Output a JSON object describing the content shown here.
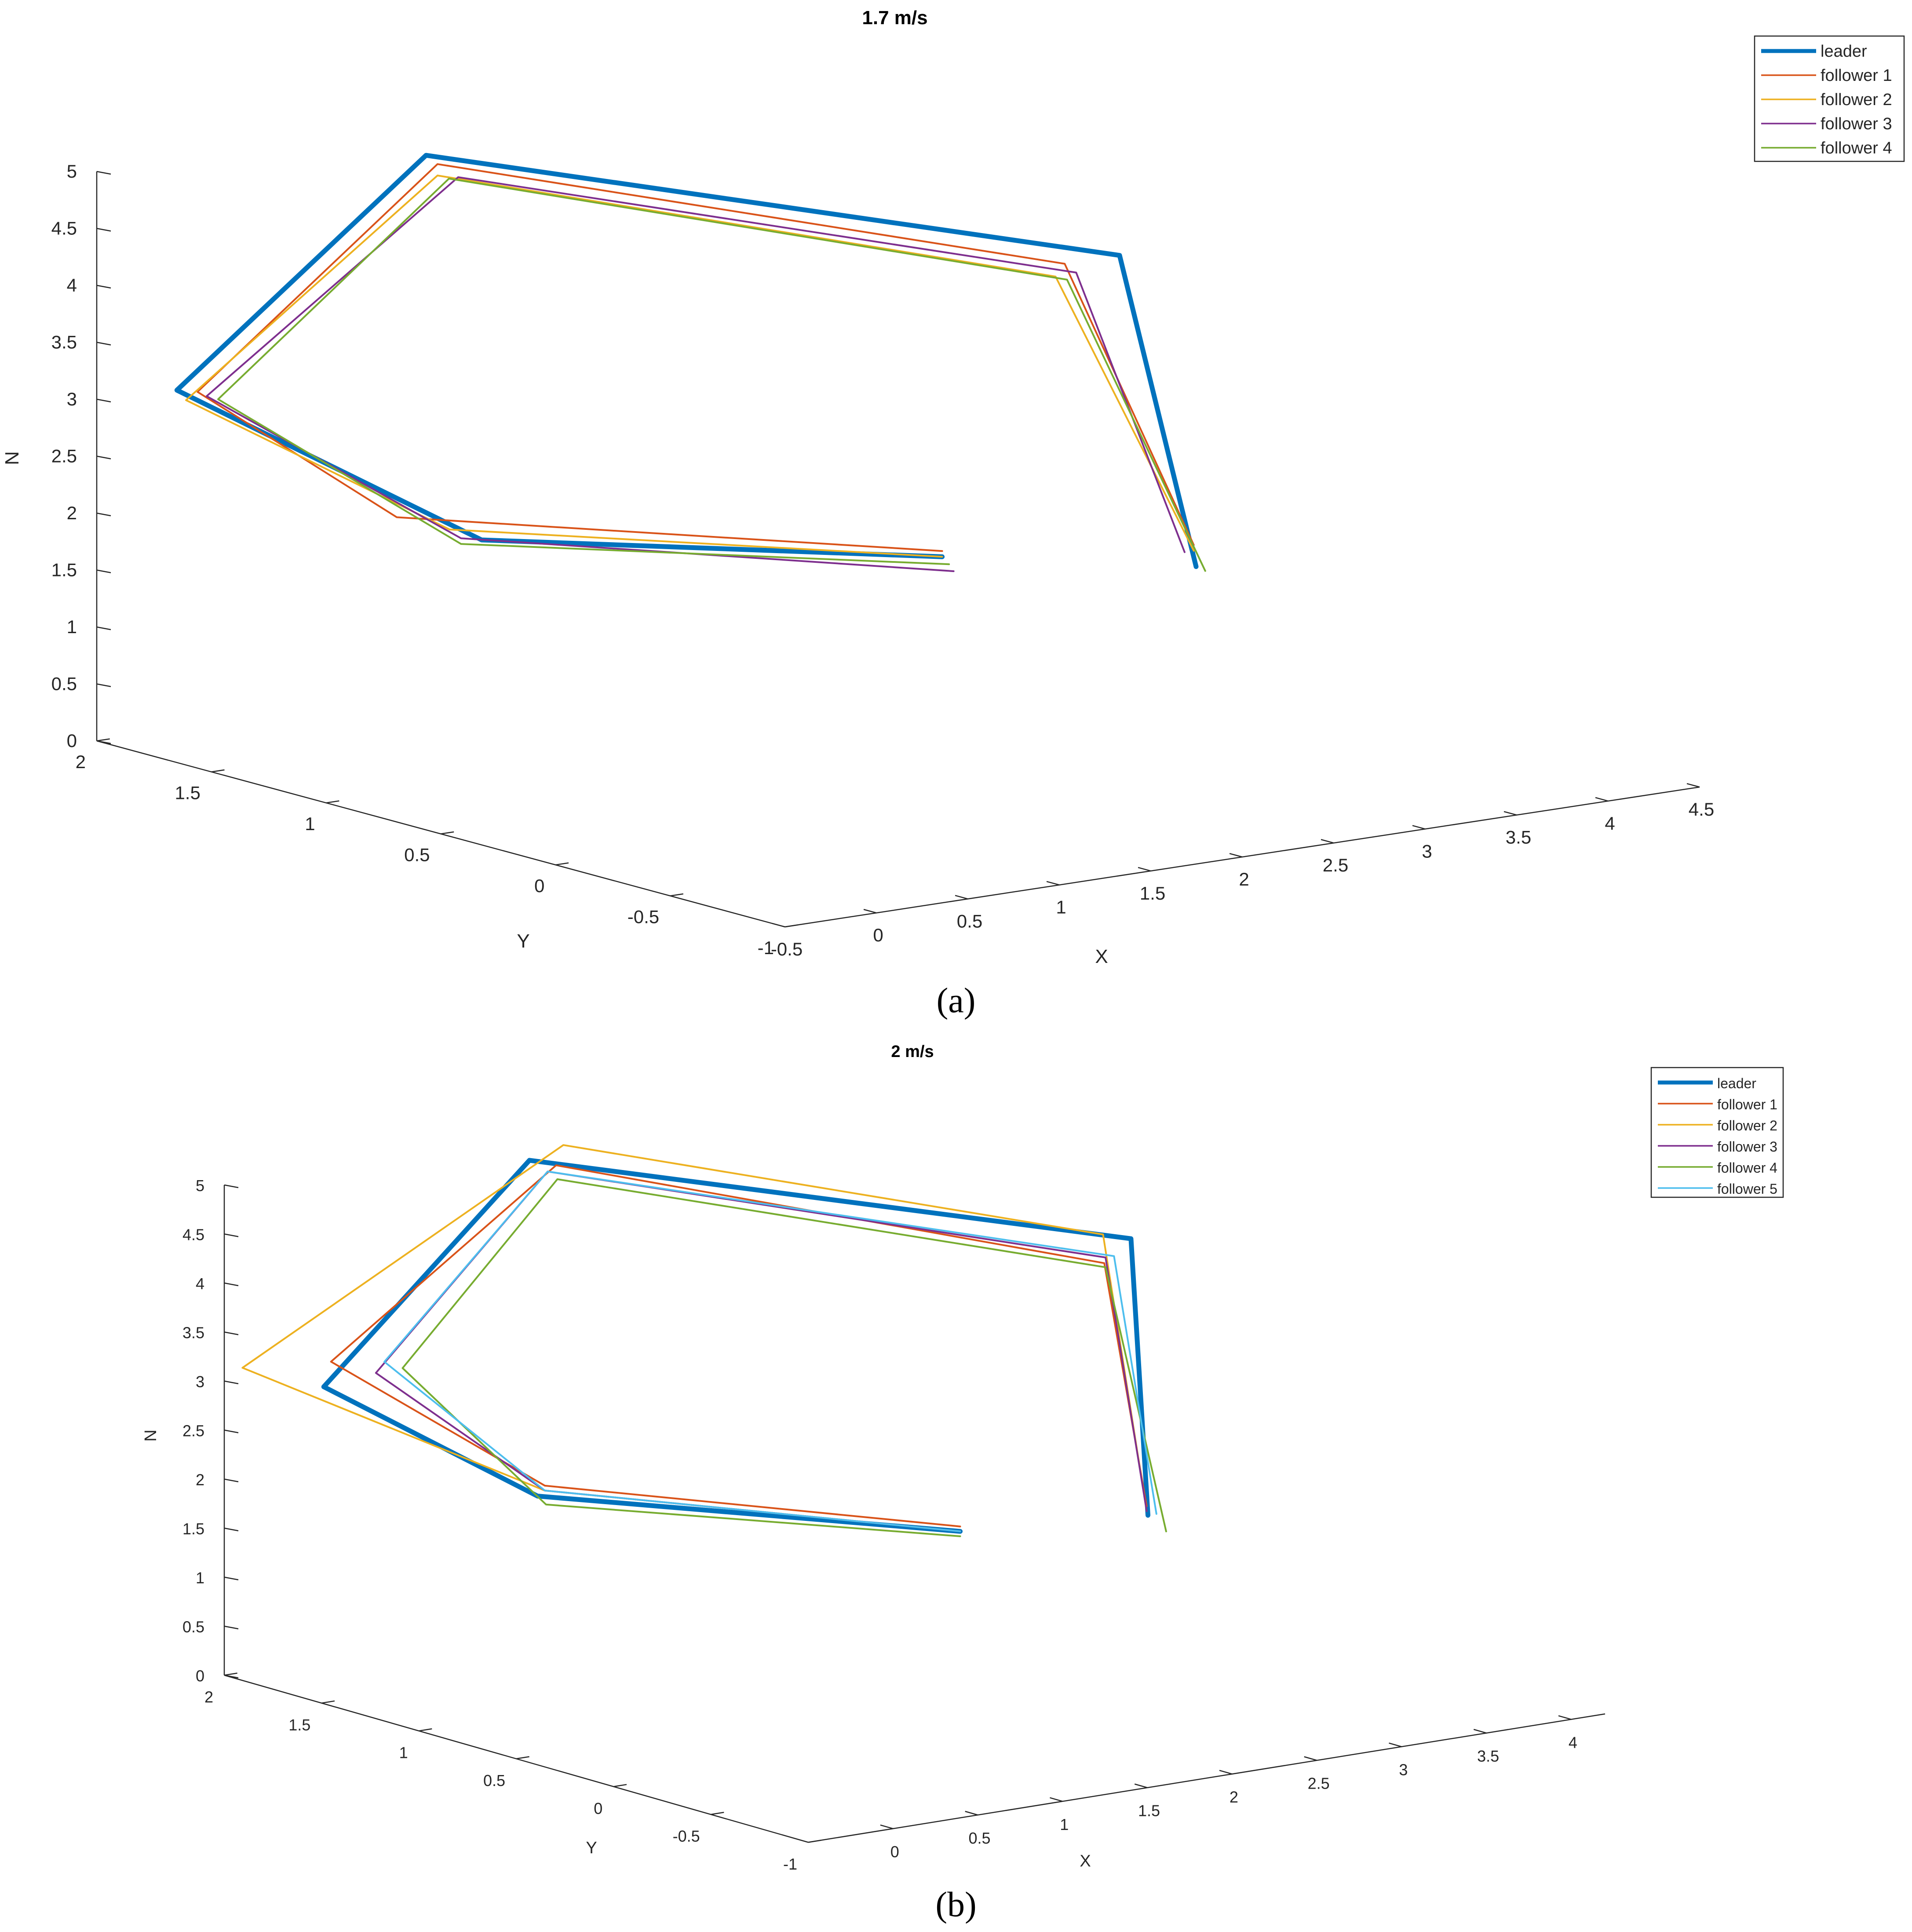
{
  "chart_data": [
    {
      "type": "line",
      "projection": "3d",
      "title": "1.7 m/s",
      "panel_label": "(a)",
      "xlabel": "X",
      "ylabel": "Y",
      "zlabel": "N",
      "xlim": [
        -0.5,
        4.5
      ],
      "ylim": [
        -1,
        2
      ],
      "zlim": [
        0,
        5
      ],
      "xticks": [
        "-0.5",
        "0",
        "0.5",
        "1",
        "1.5",
        "2",
        "2.5",
        "3",
        "3.5",
        "4",
        "4.5"
      ],
      "yticks": [
        "-1",
        "-0.5",
        "0",
        "0.5",
        "1",
        "1.5",
        "2"
      ],
      "zticks": [
        "0",
        "0.5",
        "1",
        "1.5",
        "2",
        "2.5",
        "3",
        "3.5",
        "4",
        "4.5",
        "5"
      ],
      "grid": false,
      "legend_position": "top-right",
      "series": [
        {
          "name": "leader",
          "color": "#0072BD",
          "width": "thick",
          "points": [
            [
              1.3,
              -0.25,
              2.4
            ],
            [
              0.35,
              1.0,
              2.1
            ],
            [
              -0.25,
              1.85,
              3.1
            ],
            [
              1.3,
              2.0,
              4.7
            ],
            [
              3.9,
              1.05,
              3.7
            ],
            [
              2.5,
              -0.4,
              2.1
            ]
          ]
        },
        {
          "name": "follower 1",
          "color": "#D95319",
          "points": [
            [
              1.3,
              -0.25,
              2.45
            ],
            [
              0.2,
              1.25,
              2.2
            ],
            [
              -0.2,
              1.8,
              3.1
            ],
            [
              1.3,
              1.95,
              4.65
            ],
            [
              3.6,
              1.05,
              3.7
            ],
            [
              2.55,
              -0.35,
              2.25
            ]
          ]
        },
        {
          "name": "follower 2",
          "color": "#EDB120",
          "points": [
            [
              1.3,
              -0.25,
              2.4
            ],
            [
              0.3,
              1.1,
              2.15
            ],
            [
              -0.2,
              1.85,
              3.0
            ],
            [
              1.3,
              1.95,
              4.55
            ],
            [
              3.55,
              1.05,
              3.6
            ],
            [
              2.55,
              -0.35,
              2.2
            ]
          ]
        },
        {
          "name": "follower 3",
          "color": "#7E2F8E",
          "points": [
            [
              1.3,
              -0.3,
              2.3
            ],
            [
              0.3,
              1.05,
              2.1
            ],
            [
              -0.15,
              1.8,
              3.05
            ],
            [
              1.35,
              1.9,
              4.55
            ],
            [
              3.6,
              1.0,
              3.65
            ],
            [
              2.5,
              -0.35,
              2.2
            ]
          ]
        },
        {
          "name": "follower 4",
          "color": "#77AC30",
          "points": [
            [
              1.3,
              -0.28,
              2.35
            ],
            [
              0.3,
              1.05,
              2.05
            ],
            [
              -0.15,
              1.75,
              3.05
            ],
            [
              1.3,
              1.9,
              4.55
            ],
            [
              3.55,
              1.0,
              3.6
            ],
            [
              2.55,
              -0.4,
              2.05
            ]
          ]
        }
      ]
    },
    {
      "type": "line",
      "projection": "3d",
      "title": "2 m/s",
      "panel_label": "(b)",
      "xlabel": "X",
      "ylabel": "Y",
      "zlabel": "N",
      "xlim": [
        -0.5,
        4.2
      ],
      "ylim": [
        -1,
        2
      ],
      "zlim": [
        0,
        5
      ],
      "xticks": [
        "0",
        "0.5",
        "1",
        "1.5",
        "2",
        "2.5",
        "3",
        "3.5",
        "4"
      ],
      "yticks": [
        "-1",
        "-0.5",
        "0",
        "0.5",
        "1",
        "1.5",
        "2"
      ],
      "zticks": [
        "0",
        "0.5",
        "1",
        "1.5",
        "2",
        "2.5",
        "3",
        "3.5",
        "4",
        "4.5",
        "5"
      ],
      "grid": false,
      "legend_position": "top-right",
      "series": [
        {
          "name": "leader",
          "color": "#0072BD",
          "width": "thick",
          "points": [
            [
              1.2,
              -0.3,
              2.3
            ],
            [
              0.2,
              1.0,
              2.2
            ],
            [
              -0.2,
              1.75,
              3.0
            ],
            [
              1.3,
              2.0,
              4.75
            ],
            [
              3.7,
              1.0,
              3.85
            ],
            [
              2.25,
              -0.35,
              2.2
            ]
          ]
        },
        {
          "name": "follower 1",
          "color": "#D95319",
          "points": [
            [
              1.2,
              -0.3,
              2.35
            ],
            [
              0.3,
              1.05,
              2.25
            ],
            [
              -0.1,
              1.8,
              3.2
            ],
            [
              1.4,
              1.95,
              4.7
            ],
            [
              3.6,
              1.05,
              3.6
            ],
            [
              2.3,
              -0.3,
              2.25
            ]
          ]
        },
        {
          "name": "follower 2",
          "color": "#EDB120",
          "points": [
            [
              1.2,
              -0.3,
              2.3
            ],
            [
              0.3,
              1.05,
              2.2
            ],
            [
              -0.45,
              1.95,
              3.15
            ],
            [
              1.5,
              2.0,
              4.85
            ],
            [
              3.65,
              1.1,
              3.85
            ],
            [
              2.3,
              -0.3,
              2.2
            ]
          ]
        },
        {
          "name": "follower 3",
          "color": "#7E2F8E",
          "points": [
            [
              1.2,
              -0.3,
              2.3
            ],
            [
              0.3,
              1.05,
              2.2
            ],
            [
              0.05,
              1.7,
              3.1
            ],
            [
              1.35,
              1.95,
              4.65
            ],
            [
              3.55,
              1.0,
              3.7
            ],
            [
              2.3,
              -0.3,
              2.2
            ]
          ]
        },
        {
          "name": "follower 4",
          "color": "#77AC30",
          "points": [
            [
              1.2,
              -0.3,
              2.25
            ],
            [
              0.25,
              1.0,
              2.1
            ],
            [
              0.15,
              1.65,
              3.15
            ],
            [
              1.35,
              1.9,
              4.6
            ],
            [
              3.55,
              1.0,
              3.6
            ],
            [
              2.3,
              -0.4,
              2.05
            ]
          ]
        },
        {
          "name": "follower 5",
          "color": "#4DBEEE",
          "points": [
            [
              1.2,
              -0.3,
              2.3
            ],
            [
              0.3,
              1.05,
              2.2
            ],
            [
              0.1,
              1.7,
              3.2
            ],
            [
              1.35,
              1.95,
              4.65
            ],
            [
              3.6,
              1.0,
              3.7
            ],
            [
              2.3,
              -0.35,
              2.2
            ]
          ]
        }
      ]
    }
  ]
}
